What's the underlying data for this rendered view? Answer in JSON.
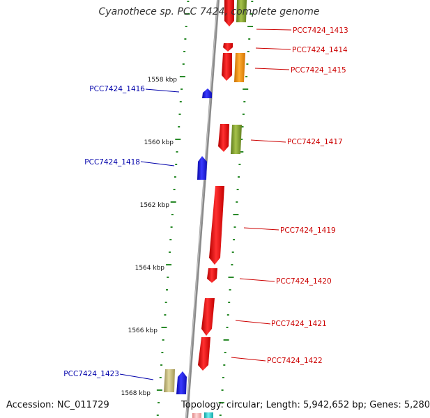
{
  "header": {
    "title": "Cyanothece sp. PCC 7424, complete genome"
  },
  "footer": {
    "accession": "Accession: NC_011729",
    "summary": "Topology: circular; Length: 5,942,652 bp; Genes: 5,280"
  },
  "kbp_labels": [
    "1558 kbp",
    "1560 kbp",
    "1562 kbp",
    "1564 kbp",
    "1566 kbp",
    "1568 kbp"
  ],
  "gene_labels": {
    "forward": [
      "PCC7424_1413",
      "PCC7424_1414",
      "PCC7424_1415",
      "PCC7424_1417",
      "PCC7424_1419",
      "PCC7424_1420",
      "PCC7424_1421",
      "PCC7424_1422"
    ],
    "reverse": [
      "PCC7424_1416",
      "PCC7424_1418",
      "PCC7424_1423"
    ]
  },
  "colors": {
    "backbone": "#8a8a8a",
    "forward_gene": "#ee0000",
    "reverse_gene": "#1f1fe6",
    "forward_label": "#cc0000",
    "reverse_label": "#0000aa",
    "olive_feature": "#7d9a2e",
    "orange_feature": "#f08c00",
    "khaki_feature": "#bdb27a",
    "cyan_feature": "#22cccc",
    "pink_feature": "#f5b0b0",
    "tick": "#2a8a2a"
  }
}
